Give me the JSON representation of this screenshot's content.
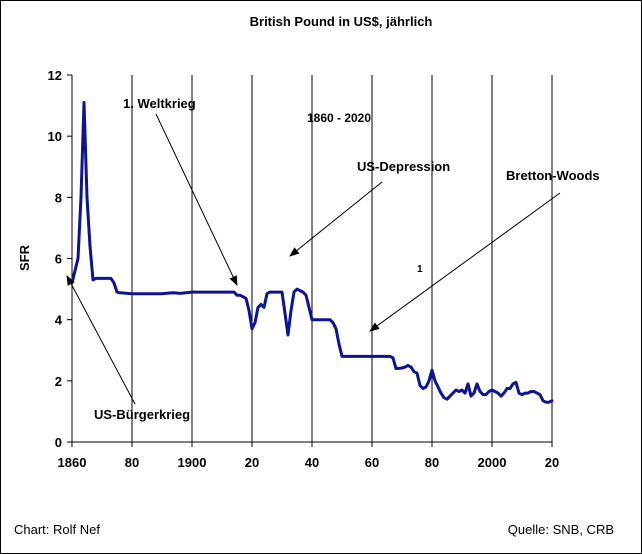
{
  "chart_data": {
    "type": "line",
    "title": "British Pound in US$, jährlich",
    "subtitle": "1860 - 2020",
    "xlabel": "",
    "ylabel": "SFR",
    "xlim": [
      1860,
      2020
    ],
    "ylim": [
      0,
      12
    ],
    "x_tick_labels": [
      "1860",
      "80",
      "1900",
      "20",
      "40",
      "60",
      "80",
      "2000",
      "20"
    ],
    "y_tick_labels": [
      "0",
      "2",
      "4",
      "6",
      "8",
      "10",
      "12"
    ],
    "grid": "vertical",
    "legend": "none",
    "series": [
      {
        "color": "#0a1495",
        "x": [
          1860,
          1861,
          1862,
          1863,
          1864,
          1865,
          1866,
          1867,
          1868,
          1870,
          1872,
          1873,
          1874,
          1875,
          1876,
          1880,
          1885,
          1890,
          1892,
          1894,
          1896,
          1898,
          1900,
          1905,
          1910,
          1914,
          1915,
          1916,
          1918,
          1919,
          1920,
          1921,
          1922,
          1923,
          1924,
          1925,
          1926,
          1928,
          1930,
          1931,
          1932,
          1933,
          1934,
          1935,
          1937,
          1938,
          1939,
          1940,
          1942,
          1945,
          1946,
          1947,
          1948,
          1949,
          1950,
          1955,
          1960,
          1965,
          1966,
          1967,
          1968,
          1970,
          1971,
          1972,
          1973,
          1974,
          1975,
          1976,
          1977,
          1978,
          1979,
          1980,
          1981,
          1982,
          1983,
          1984,
          1985,
          1986,
          1987,
          1988,
          1989,
          1990,
          1991,
          1992,
          1993,
          1994,
          1995,
          1996,
          1997,
          1998,
          1999,
          2000,
          2001,
          2002,
          2003,
          2004,
          2005,
          2006,
          2007,
          2008,
          2009,
          2010,
          2011,
          2012,
          2013,
          2014,
          2015,
          2016,
          2017,
          2018,
          2019,
          2020
        ],
        "values": [
          5.2,
          5.6,
          6.0,
          8.0,
          11.1,
          8.0,
          6.4,
          5.3,
          5.35,
          5.35,
          5.35,
          5.35,
          5.2,
          4.9,
          4.88,
          4.85,
          4.85,
          4.85,
          4.87,
          4.88,
          4.86,
          4.88,
          4.9,
          4.9,
          4.9,
          4.9,
          4.8,
          4.8,
          4.7,
          4.3,
          3.7,
          3.9,
          4.4,
          4.5,
          4.4,
          4.85,
          4.9,
          4.9,
          4.9,
          4.2,
          3.5,
          4.3,
          4.9,
          5.0,
          4.9,
          4.8,
          4.4,
          4.0,
          4.0,
          4.0,
          4.0,
          3.9,
          3.7,
          3.2,
          2.8,
          2.8,
          2.8,
          2.8,
          2.8,
          2.75,
          2.4,
          2.42,
          2.45,
          2.5,
          2.45,
          2.3,
          2.25,
          1.85,
          1.75,
          1.8,
          2.0,
          2.35,
          2.0,
          1.8,
          1.6,
          1.45,
          1.4,
          1.5,
          1.6,
          1.7,
          1.65,
          1.7,
          1.6,
          1.9,
          1.5,
          1.6,
          1.9,
          1.65,
          1.55,
          1.55,
          1.65,
          1.7,
          1.65,
          1.6,
          1.5,
          1.6,
          1.75,
          1.75,
          1.9,
          1.95,
          1.6,
          1.55,
          1.6,
          1.6,
          1.65,
          1.65,
          1.6,
          1.55,
          1.35,
          1.3,
          1.3,
          1.35
        ]
      }
    ],
    "annotations": [
      {
        "text": "1. Weltkrieg",
        "target_x": 1917,
        "target_y": 5.1
      },
      {
        "text": "US-Depression",
        "target_x": 1932,
        "target_y": 6.1
      },
      {
        "text": "Bretton-Woods",
        "target_x": 1959,
        "target_y": 3.6
      },
      {
        "text": "US-Bürgerkrieg",
        "target_x": 1859,
        "target_y": 5.4
      },
      {
        "text": "1",
        "target_x": null,
        "target_y": null
      }
    ]
  },
  "footer": {
    "left": "Chart: Rolf Nef",
    "right": "Quelle: SNB, CRB"
  }
}
